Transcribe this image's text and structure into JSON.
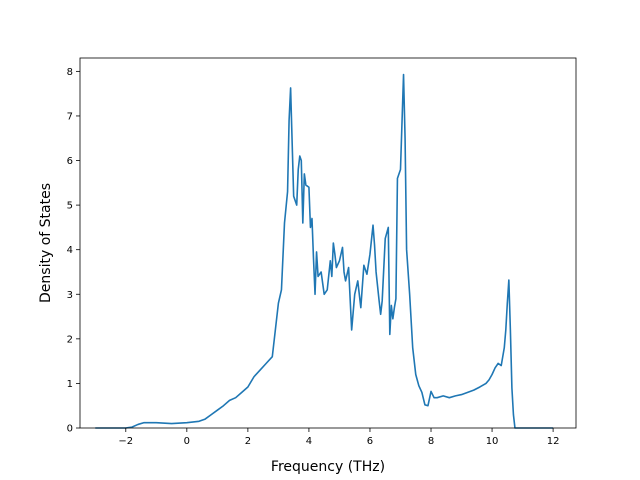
{
  "chart_data": {
    "type": "line",
    "title": "",
    "xlabel": "Frequency (THz)",
    "ylabel": "Density of States",
    "xlim": [
      -3.5,
      12.75
    ],
    "ylim": [
      0,
      8.3
    ],
    "xticks": [
      -2,
      0,
      2,
      4,
      6,
      8,
      10,
      12
    ],
    "yticks": [
      0,
      1,
      2,
      3,
      4,
      5,
      6,
      7,
      8
    ],
    "xtick_labels": [
      "−2",
      "0",
      "2",
      "4",
      "6",
      "8",
      "10",
      "12"
    ],
    "ytick_labels": [
      "0",
      "1",
      "2",
      "3",
      "4",
      "5",
      "6",
      "7",
      "8"
    ],
    "grid": false,
    "legend": false,
    "series": [
      {
        "color": "#1f77b4",
        "x": [
          -3.0,
          -2.0,
          -1.8,
          -1.6,
          -1.4,
          -1.0,
          -0.5,
          0.0,
          0.4,
          0.6,
          0.8,
          1.0,
          1.2,
          1.4,
          1.6,
          1.8,
          2.0,
          2.2,
          2.4,
          2.6,
          2.8,
          2.9,
          3.0,
          3.1,
          3.2,
          3.3,
          3.35,
          3.4,
          3.5,
          3.6,
          3.65,
          3.7,
          3.75,
          3.8,
          3.85,
          3.9,
          4.0,
          4.05,
          4.1,
          4.15,
          4.2,
          4.25,
          4.3,
          4.4,
          4.5,
          4.6,
          4.7,
          4.75,
          4.8,
          4.85,
          4.9,
          5.0,
          5.1,
          5.15,
          5.2,
          5.3,
          5.4,
          5.5,
          5.6,
          5.7,
          5.8,
          5.9,
          6.0,
          6.1,
          6.15,
          6.2,
          6.3,
          6.35,
          6.4,
          6.5,
          6.6,
          6.65,
          6.7,
          6.75,
          6.8,
          6.85,
          6.9,
          7.0,
          7.1,
          7.15,
          7.2,
          7.3,
          7.4,
          7.5,
          7.6,
          7.7,
          7.8,
          7.9,
          8.0,
          8.1,
          8.2,
          8.4,
          8.6,
          8.8,
          9.0,
          9.2,
          9.4,
          9.6,
          9.8,
          9.9,
          10.0,
          10.1,
          10.2,
          10.3,
          10.4,
          10.45,
          10.5,
          10.55,
          10.6,
          10.65,
          10.7,
          10.75,
          11.0,
          12.0
        ],
        "y": [
          0.0,
          0.0,
          0.02,
          0.08,
          0.12,
          0.12,
          0.1,
          0.12,
          0.15,
          0.2,
          0.3,
          0.4,
          0.5,
          0.62,
          0.68,
          0.8,
          0.92,
          1.15,
          1.3,
          1.45,
          1.6,
          2.2,
          2.8,
          3.1,
          4.6,
          5.3,
          6.9,
          7.63,
          5.2,
          5.0,
          5.8,
          6.1,
          6.0,
          4.6,
          5.7,
          5.45,
          5.4,
          4.5,
          4.7,
          3.8,
          3.0,
          3.95,
          3.4,
          3.5,
          3.0,
          3.1,
          3.75,
          3.4,
          4.15,
          3.9,
          3.6,
          3.75,
          4.05,
          3.5,
          3.3,
          3.6,
          2.2,
          3.0,
          3.3,
          2.7,
          3.65,
          3.45,
          3.9,
          4.55,
          4.1,
          3.5,
          2.85,
          2.55,
          2.85,
          4.25,
          4.5,
          2.1,
          2.75,
          2.45,
          2.7,
          2.9,
          5.6,
          5.8,
          7.93,
          6.5,
          4.0,
          3.0,
          1.8,
          1.2,
          0.95,
          0.8,
          0.52,
          0.5,
          0.82,
          0.68,
          0.68,
          0.72,
          0.68,
          0.72,
          0.75,
          0.8,
          0.85,
          0.92,
          1.0,
          1.08,
          1.2,
          1.35,
          1.45,
          1.4,
          1.8,
          2.2,
          2.8,
          3.32,
          2.2,
          0.9,
          0.3,
          0.0,
          0.0,
          0.0
        ]
      }
    ]
  }
}
